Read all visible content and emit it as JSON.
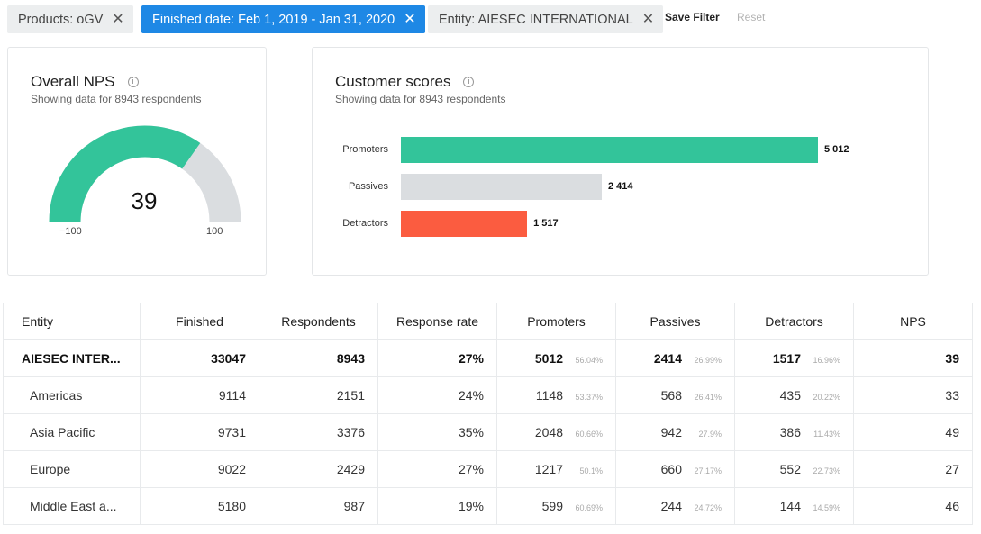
{
  "filters": {
    "products": "Products: oGV",
    "finished_date": "Finished date: Feb 1, 2019 - Jan 31, 2020",
    "entity": "Entity: AIESEC INTERNATIONAL",
    "remove_icon": "close-icon",
    "save_label": "Save Filter",
    "reset_label": "Reset",
    "active_color": "#1e88e5"
  },
  "overall_nps": {
    "title": "Overall NPS",
    "info_icon": "info-icon",
    "subtitle": "Showing data for 8943 respondents",
    "value": "39",
    "min_label": "−100",
    "max_label": "100",
    "gauge_fill_color": "#33c49a",
    "gauge_rest_color": "#dadde0"
  },
  "customer_scores": {
    "title": "Customer scores",
    "info_icon": "info-icon",
    "subtitle": "Showing data for 8943 respondents"
  },
  "chart_data": {
    "type": "bar",
    "orientation": "horizontal",
    "categories": [
      "Promoters",
      "Passives",
      "Detractors"
    ],
    "values": [
      5012,
      2414,
      1517
    ],
    "value_labels": [
      "5 012",
      "2 414",
      "1 517"
    ],
    "colors": [
      "#33c49a",
      "#dadde0",
      "#fb5c40"
    ]
  },
  "table": {
    "columns": [
      "Entity",
      "Finished",
      "Respondents",
      "Response rate",
      "Promoters",
      "Passives",
      "Detractors",
      "NPS"
    ],
    "rows": [
      {
        "entity": "AIESEC INTER...",
        "finished": "33047",
        "respondents": "8943",
        "rate": "27%",
        "promoters": "5012",
        "promoters_pct": "56.04%",
        "passives": "2414",
        "passives_pct": "26.99%",
        "detractors": "1517",
        "detractors_pct": "16.96%",
        "nps": "39"
      },
      {
        "entity": "Americas",
        "finished": "9114",
        "respondents": "2151",
        "rate": "24%",
        "promoters": "1148",
        "promoters_pct": "53.37%",
        "passives": "568",
        "passives_pct": "26.41%",
        "detractors": "435",
        "detractors_pct": "20.22%",
        "nps": "33"
      },
      {
        "entity": "Asia Pacific",
        "finished": "9731",
        "respondents": "3376",
        "rate": "35%",
        "promoters": "2048",
        "promoters_pct": "60.66%",
        "passives": "942",
        "passives_pct": "27.9%",
        "detractors": "386",
        "detractors_pct": "11.43%",
        "nps": "49"
      },
      {
        "entity": "Europe",
        "finished": "9022",
        "respondents": "2429",
        "rate": "27%",
        "promoters": "1217",
        "promoters_pct": "50.1%",
        "passives": "660",
        "passives_pct": "27.17%",
        "detractors": "552",
        "detractors_pct": "22.73%",
        "nps": "27"
      },
      {
        "entity": "Middle East a...",
        "finished": "5180",
        "respondents": "987",
        "rate": "19%",
        "promoters": "599",
        "promoters_pct": "60.69%",
        "passives": "244",
        "passives_pct": "24.72%",
        "detractors": "144",
        "detractors_pct": "14.59%",
        "nps": "46"
      }
    ]
  }
}
